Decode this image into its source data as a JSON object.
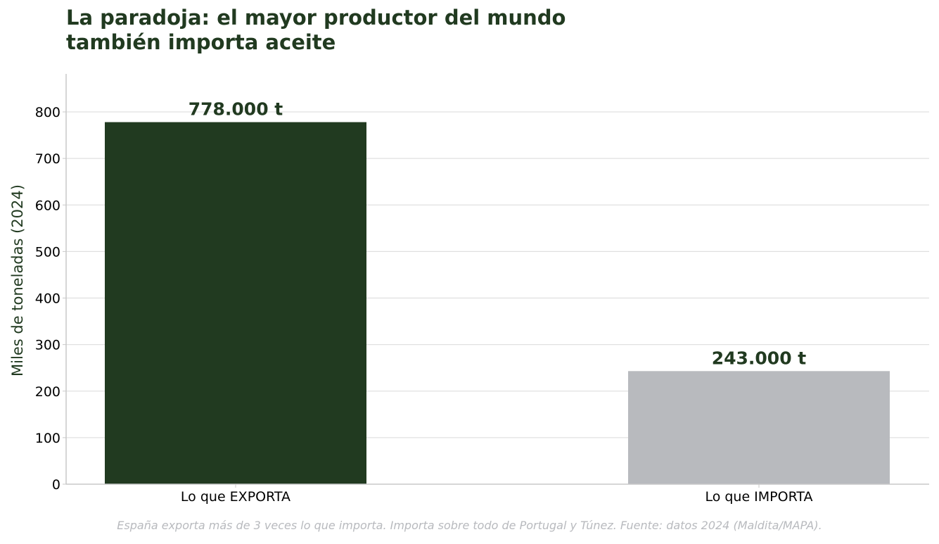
{
  "title_lines": [
    "La paradoja: el mayor productor del mundo",
    "también importa aceite"
  ],
  "footnote": "España exporta más de 3 veces lo que importa. Importa sobre todo de Portugal y Túnez. Fuente: datos 2024 (Maldita/MAPA).",
  "colors": {
    "title": "#213a20",
    "export_bar": "#213a20",
    "import_bar": "#b8babe",
    "grid": "#e0e0e0",
    "axis": "#c8c8c8",
    "footnote": "#b8babe"
  },
  "chart_data": {
    "type": "bar",
    "title": "La paradoja: el mayor productor del mundo también importa aceite",
    "xlabel": "",
    "ylabel": "Miles de toneladas (2024)",
    "categories": [
      "Lo que EXPORTA",
      "Lo que IMPORTA"
    ],
    "values": [
      778,
      243
    ],
    "data_labels": [
      "778.000 t",
      "243.000 t"
    ],
    "bar_colors": [
      "#213a20",
      "#b8babe"
    ],
    "label_colors": [
      "#213a20",
      "#213a20"
    ],
    "ylim": [
      0,
      880
    ],
    "yticks": [
      0,
      100,
      200,
      300,
      400,
      500,
      600,
      700,
      800
    ],
    "grid": true,
    "legend": "none"
  }
}
